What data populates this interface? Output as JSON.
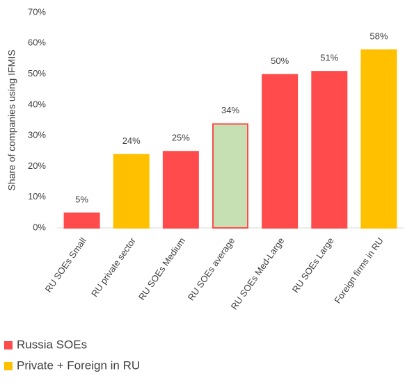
{
  "chart_data": {
    "type": "bar",
    "y_label": "Share of companies using IFMIS",
    "categories": [
      "RU SOEs Small",
      "RU private sector",
      "RU SOEs Medium",
      "RU SOEs average",
      "RU SOEs Med-Large",
      "RU SOEs Large",
      "Foreign firms in RU"
    ],
    "values": [
      5,
      24,
      25,
      34,
      50,
      51,
      58
    ],
    "value_labels": [
      "5%",
      "24%",
      "25%",
      "34%",
      "50%",
      "51%",
      "58%"
    ],
    "bar_colors": [
      "#ff4b4b",
      "#ffc000",
      "#ff4b4b",
      "#c6e0b4",
      "#ff4b4b",
      "#ff4b4b",
      "#ffc000"
    ],
    "edge_colors": [
      "#ff4b4b",
      "#ffc000",
      "#ff4b4b",
      "#ff4b4b",
      "#ff4b4b",
      "#ff4b4b",
      "#ffc000"
    ],
    "ylim": [
      0,
      70
    ],
    "yticks": [
      {
        "value": 0,
        "label": "0%"
      },
      {
        "value": 10,
        "label": "10%"
      },
      {
        "value": 20,
        "label": "20%"
      },
      {
        "value": 30,
        "label": "30%"
      },
      {
        "value": 40,
        "label": "40%"
      },
      {
        "value": 50,
        "label": "50%"
      },
      {
        "value": 60,
        "label": "60%"
      },
      {
        "value": 70,
        "label": "70%"
      }
    ],
    "grid": false,
    "legend": [
      {
        "name": "Russia SOEs",
        "color": "#ff4b4b"
      },
      {
        "name": "Private + Foreign in RU",
        "color": "#ffc000"
      }
    ]
  }
}
